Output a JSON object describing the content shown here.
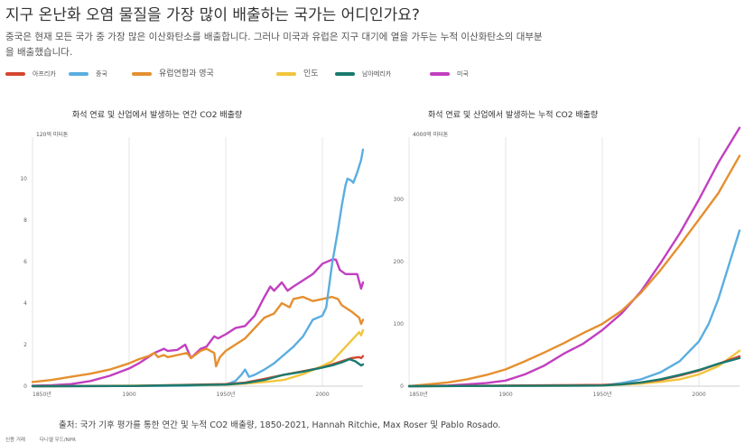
{
  "header": {
    "title": "지구 온난화 오염 물질을 가장 많이 배출하는 국가는 어디인가요?",
    "subtitle_line1": "중국은 현재 모든 국가 중 가장 많은 이산화탄소를 배출합니다. 그러나 미국과 유럽은 지구 대기에 열을 가두는 누적 이산화탄소의 대부분",
    "subtitle_line2": "을 배출했습니다."
  },
  "legend": [
    {
      "label": "아프리카",
      "color": "#d4462f"
    },
    {
      "label": "중국",
      "color": "#5aaee0"
    },
    {
      "label": "유럽연합과 영국",
      "color": "#e58f2f"
    },
    {
      "label": "인도",
      "color": "#f2c53d"
    },
    {
      "label": "남아메리카",
      "color": "#1a7a6e"
    },
    {
      "label": "미국",
      "color": "#c23fbf"
    }
  ],
  "chart_data": [
    {
      "type": "line",
      "title": "화석 연료 및 산업에서 발생하는 연간 CO2 배출량",
      "ylabel": "120억 미터톤",
      "xlim": [
        1850,
        2021
      ],
      "ylim": [
        0,
        12
      ],
      "x_ticks": [
        {
          "value": 1850,
          "label": "1850년"
        },
        {
          "value": 1900,
          "label": "1900"
        },
        {
          "value": 1950,
          "label": "1950년"
        },
        {
          "value": 2000,
          "label": "2000"
        }
      ],
      "y_ticks": [
        {
          "value": 0,
          "label": "0"
        },
        {
          "value": 2,
          "label": "2"
        },
        {
          "value": 4,
          "label": "4"
        },
        {
          "value": 6,
          "label": "6"
        },
        {
          "value": 8,
          "label": "8"
        },
        {
          "value": 10,
          "label": "10"
        }
      ],
      "grid": "vertical",
      "series": [
        {
          "name": "미국",
          "color": "#c23fbf",
          "points": [
            [
              1850,
              0.02
            ],
            [
              1860,
              0.05
            ],
            [
              1870,
              0.1
            ],
            [
              1880,
              0.25
            ],
            [
              1890,
              0.5
            ],
            [
              1900,
              0.85
            ],
            [
              1905,
              1.1
            ],
            [
              1910,
              1.4
            ],
            [
              1913,
              1.6
            ],
            [
              1918,
              1.8
            ],
            [
              1920,
              1.7
            ],
            [
              1925,
              1.75
            ],
            [
              1929,
              2.0
            ],
            [
              1932,
              1.35
            ],
            [
              1937,
              1.8
            ],
            [
              1940,
              1.9
            ],
            [
              1944,
              2.4
            ],
            [
              1946,
              2.3
            ],
            [
              1950,
              2.5
            ],
            [
              1955,
              2.8
            ],
            [
              1960,
              2.9
            ],
            [
              1965,
              3.4
            ],
            [
              1970,
              4.3
            ],
            [
              1973,
              4.8
            ],
            [
              1975,
              4.6
            ],
            [
              1979,
              5.0
            ],
            [
              1982,
              4.6
            ],
            [
              1985,
              4.8
            ],
            [
              1990,
              5.1
            ],
            [
              1995,
              5.4
            ],
            [
              2000,
              5.9
            ],
            [
              2005,
              6.1
            ],
            [
              2007,
              6.1
            ],
            [
              2009,
              5.6
            ],
            [
              2012,
              5.4
            ],
            [
              2015,
              5.4
            ],
            [
              2018,
              5.4
            ],
            [
              2020,
              4.7
            ],
            [
              2021,
              5.0
            ]
          ]
        },
        {
          "name": "유럽연합과 영국",
          "color": "#e58f2f",
          "points": [
            [
              1850,
              0.2
            ],
            [
              1860,
              0.3
            ],
            [
              1870,
              0.45
            ],
            [
              1880,
              0.6
            ],
            [
              1890,
              0.8
            ],
            [
              1900,
              1.1
            ],
            [
              1905,
              1.3
            ],
            [
              1910,
              1.45
            ],
            [
              1913,
              1.6
            ],
            [
              1915,
              1.4
            ],
            [
              1918,
              1.5
            ],
            [
              1920,
              1.4
            ],
            [
              1925,
              1.5
            ],
            [
              1930,
              1.6
            ],
            [
              1932,
              1.35
            ],
            [
              1937,
              1.7
            ],
            [
              1940,
              1.8
            ],
            [
              1944,
              1.6
            ],
            [
              1945,
              0.95
            ],
            [
              1947,
              1.4
            ],
            [
              1950,
              1.7
            ],
            [
              1955,
              2.0
            ],
            [
              1960,
              2.3
            ],
            [
              1965,
              2.8
            ],
            [
              1970,
              3.3
            ],
            [
              1975,
              3.5
            ],
            [
              1979,
              4.0
            ],
            [
              1983,
              3.8
            ],
            [
              1985,
              4.2
            ],
            [
              1990,
              4.3
            ],
            [
              1995,
              4.1
            ],
            [
              2000,
              4.2
            ],
            [
              2005,
              4.3
            ],
            [
              2008,
              4.2
            ],
            [
              2010,
              3.9
            ],
            [
              2015,
              3.6
            ],
            [
              2019,
              3.3
            ],
            [
              2020,
              3.0
            ],
            [
              2021,
              3.2
            ]
          ]
        },
        {
          "name": "중국",
          "color": "#5aaee0",
          "points": [
            [
              1850,
              0.0
            ],
            [
              1900,
              0.01
            ],
            [
              1930,
              0.02
            ],
            [
              1950,
              0.08
            ],
            [
              1955,
              0.25
            ],
            [
              1958,
              0.55
            ],
            [
              1960,
              0.8
            ],
            [
              1962,
              0.45
            ],
            [
              1965,
              0.55
            ],
            [
              1970,
              0.8
            ],
            [
              1975,
              1.1
            ],
            [
              1980,
              1.5
            ],
            [
              1985,
              1.9
            ],
            [
              1990,
              2.4
            ],
            [
              1995,
              3.2
            ],
            [
              2000,
              3.4
            ],
            [
              2002,
              3.8
            ],
            [
              2005,
              5.9
            ],
            [
              2008,
              7.5
            ],
            [
              2010,
              8.7
            ],
            [
              2012,
              9.7
            ],
            [
              2013,
              10.0
            ],
            [
              2015,
              9.9
            ],
            [
              2016,
              9.8
            ],
            [
              2018,
              10.3
            ],
            [
              2020,
              10.9
            ],
            [
              2021,
              11.4
            ]
          ]
        },
        {
          "name": "인도",
          "color": "#f2c53d",
          "points": [
            [
              1850,
              0.0
            ],
            [
              1900,
              0.02
            ],
            [
              1950,
              0.07
            ],
            [
              1960,
              0.12
            ],
            [
              1970,
              0.2
            ],
            [
              1980,
              0.3
            ],
            [
              1990,
              0.58
            ],
            [
              2000,
              0.98
            ],
            [
              2005,
              1.2
            ],
            [
              2010,
              1.7
            ],
            [
              2015,
              2.2
            ],
            [
              2019,
              2.6
            ],
            [
              2020,
              2.45
            ],
            [
              2021,
              2.7
            ]
          ]
        },
        {
          "name": "아프리카",
          "color": "#d4462f",
          "points": [
            [
              1850,
              0.0
            ],
            [
              1900,
              0.01
            ],
            [
              1950,
              0.1
            ],
            [
              1960,
              0.17
            ],
            [
              1970,
              0.35
            ],
            [
              1980,
              0.55
            ],
            [
              1990,
              0.72
            ],
            [
              2000,
              0.9
            ],
            [
              2005,
              1.05
            ],
            [
              2010,
              1.2
            ],
            [
              2015,
              1.35
            ],
            [
              2019,
              1.4
            ],
            [
              2020,
              1.35
            ],
            [
              2021,
              1.45
            ]
          ]
        },
        {
          "name": "남아메리카",
          "color": "#1a7a6e",
          "points": [
            [
              1850,
              0.0
            ],
            [
              1900,
              0.01
            ],
            [
              1950,
              0.08
            ],
            [
              1960,
              0.15
            ],
            [
              1970,
              0.3
            ],
            [
              1980,
              0.55
            ],
            [
              1990,
              0.7
            ],
            [
              2000,
              0.9
            ],
            [
              2005,
              1.0
            ],
            [
              2010,
              1.15
            ],
            [
              2014,
              1.3
            ],
            [
              2017,
              1.2
            ],
            [
              2020,
              1.0
            ],
            [
              2021,
              1.05
            ]
          ]
        }
      ]
    },
    {
      "type": "line",
      "title": "화석 연료 및 산업에서 발생하는 누적 CO2 배출량",
      "ylabel": "4000억 미터톤",
      "xlim": [
        1850,
        2021
      ],
      "ylim": [
        0,
        400
      ],
      "x_ticks": [
        {
          "value": 1850,
          "label": "1850년"
        },
        {
          "value": 1900,
          "label": "1900"
        },
        {
          "value": 1950,
          "label": "1950년"
        },
        {
          "value": 2000,
          "label": "2000"
        }
      ],
      "y_ticks": [
        {
          "value": 0,
          "label": "0"
        },
        {
          "value": 100,
          "label": "100"
        },
        {
          "value": 200,
          "label": "200"
        },
        {
          "value": 300,
          "label": "300"
        }
      ],
      "grid": "vertical",
      "series": [
        {
          "name": "미국",
          "color": "#c23fbf",
          "points": [
            [
              1850,
              0
            ],
            [
              1870,
              1
            ],
            [
              1890,
              5
            ],
            [
              1900,
              9
            ],
            [
              1910,
              19
            ],
            [
              1920,
              33
            ],
            [
              1930,
              52
            ],
            [
              1940,
              68
            ],
            [
              1950,
              90
            ],
            [
              1960,
              117
            ],
            [
              1970,
              152
            ],
            [
              1980,
              197
            ],
            [
              1990,
              245
            ],
            [
              2000,
              300
            ],
            [
              2010,
              359
            ],
            [
              2021,
              415
            ]
          ]
        },
        {
          "name": "유럽연합과 영국",
          "color": "#e58f2f",
          "points": [
            [
              1850,
              0
            ],
            [
              1860,
              3
            ],
            [
              1870,
              6
            ],
            [
              1880,
              11
            ],
            [
              1890,
              18
            ],
            [
              1900,
              27
            ],
            [
              1910,
              40
            ],
            [
              1920,
              54
            ],
            [
              1930,
              69
            ],
            [
              1940,
              85
            ],
            [
              1950,
              100
            ],
            [
              1960,
              121
            ],
            [
              1970,
              150
            ],
            [
              1980,
              186
            ],
            [
              1990,
              226
            ],
            [
              2000,
              268
            ],
            [
              2010,
              310
            ],
            [
              2021,
              370
            ]
          ]
        },
        {
          "name": "중국",
          "color": "#5aaee0",
          "points": [
            [
              1850,
              0
            ],
            [
              1950,
              1
            ],
            [
              1960,
              5
            ],
            [
              1970,
              11
            ],
            [
              1980,
              22
            ],
            [
              1990,
              40
            ],
            [
              2000,
              72
            ],
            [
              2005,
              100
            ],
            [
              2010,
              140
            ],
            [
              2015,
              190
            ],
            [
              2021,
              250
            ]
          ]
        },
        {
          "name": "인도",
          "color": "#f2c53d",
          "points": [
            [
              1850,
              0
            ],
            [
              1950,
              1
            ],
            [
              1970,
              4
            ],
            [
              1980,
              7
            ],
            [
              1990,
              11
            ],
            [
              2000,
              19
            ],
            [
              2010,
              32
            ],
            [
              2021,
              57
            ]
          ]
        },
        {
          "name": "아프리카",
          "color": "#d4462f",
          "points": [
            [
              1850,
              0
            ],
            [
              1950,
              2
            ],
            [
              1960,
              3
            ],
            [
              1970,
              6
            ],
            [
              1980,
              10
            ],
            [
              1990,
              17
            ],
            [
              2000,
              25
            ],
            [
              2010,
              36
            ],
            [
              2021,
              48
            ]
          ]
        },
        {
          "name": "남아메리카",
          "color": "#1a7a6e",
          "points": [
            [
              1850,
              0
            ],
            [
              1950,
              1
            ],
            [
              1960,
              3
            ],
            [
              1970,
              6
            ],
            [
              1980,
              11
            ],
            [
              1990,
              18
            ],
            [
              2000,
              26
            ],
            [
              2010,
              36
            ],
            [
              2021,
              45
            ]
          ]
        }
      ]
    }
  ],
  "footer": {
    "source": "출처: 국가 기후 평가를 통한 연간 및 누적 CO2 배출량, 1850-2021, Hannah Ritchie, Max Roser 및 Pablo Rosado.",
    "credit1": "신용 거래",
    "credit2": "다니엘 우드/NPR"
  }
}
